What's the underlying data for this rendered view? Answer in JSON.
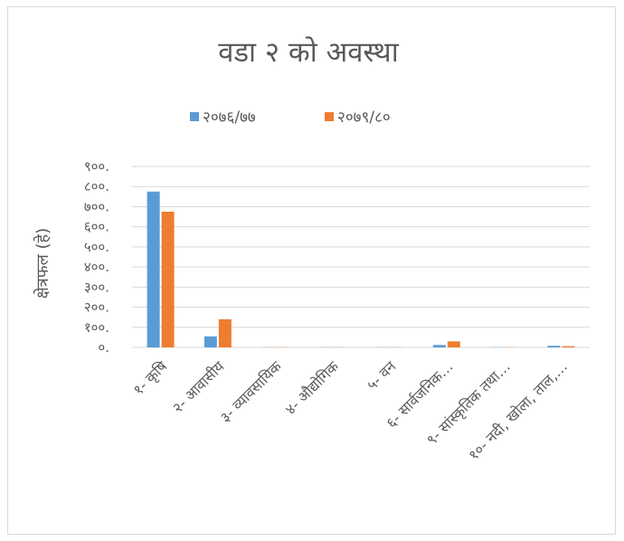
{
  "chart_data": {
    "type": "bar",
    "title": "वडा २ को अवस्था",
    "xlabel": "",
    "ylabel": "क्षेत्रफल (हे)",
    "ylim": [
      0,
      900
    ],
    "y_ticks": [
      "०.",
      "१००.",
      "२००.",
      "३००.",
      "४००.",
      "५००.",
      "६००.",
      "७००.",
      "८००.",
      "९००."
    ],
    "y_tick_values": [
      0,
      100,
      200,
      300,
      400,
      500,
      600,
      700,
      800,
      900
    ],
    "grid": true,
    "legend_position": "top",
    "categories": [
      "१- कृषि",
      "२- आवासीय",
      "३- व्यावसायिक",
      "४- औद्योगिक",
      "५- वन",
      "६- सार्वजनिक…",
      "९- सांस्कृतिक तथा…",
      "१०- नदी, खोला, ताल,…"
    ],
    "series": [
      {
        "name": "२०७६/७७",
        "color": "#5b9bd5",
        "values": [
          775,
          55,
          1,
          1,
          1,
          12,
          1,
          8
        ]
      },
      {
        "name": "२०७९/८०",
        "color": "#ed7d31",
        "values": [
          675,
          140,
          1,
          1,
          1,
          30,
          1,
          6
        ]
      }
    ]
  }
}
